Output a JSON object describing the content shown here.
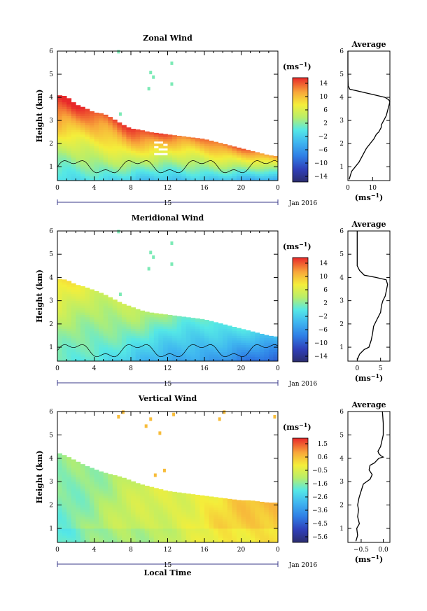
{
  "figure": {
    "xaxis_label": "Local Time",
    "date_label": "Jan 2016",
    "day_label": "15",
    "average_title": "Average"
  },
  "chart_data": [
    {
      "type": "heatmap",
      "title": "Zonal Wind",
      "ylabel": "Height (km)",
      "xticks": [
        "0",
        "4",
        "8",
        "12",
        "16",
        "20",
        "0"
      ],
      "yticks": [
        "1",
        "2",
        "3",
        "4",
        "5",
        "6"
      ],
      "xlim": [
        0,
        24
      ],
      "ylim": [
        0.4,
        6
      ],
      "colorbar": {
        "unit_label": "(ms",
        "unit_exp": "−1",
        "ticks": [
          "14",
          "10",
          "6",
          "2",
          "−2",
          "−6",
          "−10",
          "−14"
        ],
        "range": [
          -16,
          16
        ]
      },
      "top_profile": [
        [
          0,
          4.1
        ],
        [
          1,
          4.05
        ],
        [
          2,
          3.7
        ],
        [
          3,
          3.55
        ],
        [
          4,
          3.35
        ],
        [
          5,
          3.3
        ],
        [
          6,
          3.1
        ],
        [
          7,
          2.85
        ],
        [
          8,
          2.65
        ],
        [
          9,
          2.6
        ],
        [
          10,
          2.5
        ],
        [
          11,
          2.45
        ],
        [
          12,
          2.4
        ],
        [
          13,
          2.35
        ],
        [
          14,
          2.3
        ],
        [
          15,
          2.25
        ],
        [
          16,
          2.2
        ],
        [
          17,
          2.1
        ],
        [
          18,
          2.0
        ],
        [
          19,
          1.9
        ],
        [
          20,
          1.8
        ],
        [
          21,
          1.7
        ],
        [
          22,
          1.6
        ],
        [
          23,
          1.5
        ],
        [
          24,
          1.45
        ]
      ],
      "average": {
        "xticks": [
          "0",
          "10"
        ],
        "xlim": [
          0,
          17
        ],
        "height": [
          0.45,
          0.8,
          1.0,
          1.2,
          1.5,
          1.8,
          2.0,
          2.2,
          2.4,
          2.5,
          2.6,
          2.7,
          2.8,
          3.0,
          3.2,
          3.4,
          3.6,
          3.8,
          3.9,
          4.0,
          4.1,
          4.2,
          4.3,
          4.35,
          4.5,
          5.0,
          5.5,
          6.0
        ],
        "value": [
          0.5,
          1.5,
          3.0,
          4.5,
          6.0,
          7.5,
          9.0,
          10.5,
          11.5,
          12.5,
          13.0,
          13.5,
          13.5,
          14.5,
          15.5,
          16.0,
          16.5,
          17.0,
          16.5,
          15.0,
          11.0,
          7.0,
          3.0,
          0.8,
          0.1,
          0.0,
          0.0,
          0.0
        ]
      }
    },
    {
      "type": "heatmap",
      "title": "Meridional Wind",
      "ylabel": "Height (km)",
      "xticks": [
        "0",
        "4",
        "8",
        "12",
        "16",
        "20",
        "0"
      ],
      "yticks": [
        "1",
        "2",
        "3",
        "4",
        "5",
        "6"
      ],
      "xlim": [
        0,
        24
      ],
      "ylim": [
        0.4,
        6
      ],
      "colorbar": {
        "unit_label": "(ms",
        "unit_exp": "−1",
        "ticks": [
          "14",
          "10",
          "6",
          "2",
          "−2",
          "−6",
          "−10",
          "−14"
        ],
        "range": [
          -16,
          16
        ]
      },
      "top_profile": [
        [
          0,
          3.95
        ],
        [
          1,
          3.9
        ],
        [
          2,
          3.7
        ],
        [
          3,
          3.6
        ],
        [
          4,
          3.45
        ],
        [
          5,
          3.3
        ],
        [
          6,
          3.1
        ],
        [
          7,
          2.9
        ],
        [
          8,
          2.75
        ],
        [
          9,
          2.6
        ],
        [
          10,
          2.5
        ],
        [
          11,
          2.45
        ],
        [
          12,
          2.4
        ],
        [
          13,
          2.35
        ],
        [
          14,
          2.3
        ],
        [
          15,
          2.25
        ],
        [
          16,
          2.2
        ],
        [
          17,
          2.1
        ],
        [
          18,
          2.0
        ],
        [
          19,
          1.9
        ],
        [
          20,
          1.8
        ],
        [
          21,
          1.7
        ],
        [
          22,
          1.6
        ],
        [
          23,
          1.5
        ],
        [
          24,
          1.45
        ]
      ],
      "average": {
        "xticks": [
          "0",
          "5"
        ],
        "xlim": [
          -2,
          7
        ],
        "height": [
          0.45,
          0.7,
          0.9,
          1.0,
          1.3,
          1.6,
          1.9,
          2.1,
          2.3,
          2.5,
          2.8,
          3.0,
          3.2,
          3.4,
          3.7,
          3.9,
          4.0,
          4.1,
          4.3,
          4.5,
          5.0,
          5.5,
          6.0
        ],
        "value": [
          0.0,
          0.5,
          1.5,
          2.5,
          3.0,
          3.3,
          3.5,
          4.0,
          4.5,
          5.0,
          5.2,
          5.5,
          6.0,
          6.2,
          6.5,
          6.2,
          4.0,
          1.5,
          0.5,
          0.0,
          0.0,
          0.0,
          0.0
        ]
      }
    },
    {
      "type": "heatmap",
      "title": "Vertical Wind",
      "ylabel": "Height (km)",
      "xticks": [
        "0",
        "4",
        "8",
        "12",
        "16",
        "20",
        "0"
      ],
      "yticks": [
        "1",
        "2",
        "3",
        "4",
        "5",
        "6"
      ],
      "xlim": [
        0,
        24
      ],
      "ylim": [
        0.4,
        6
      ],
      "colorbar": {
        "unit_label": "(ms",
        "unit_exp": "−1",
        "ticks": [
          "1.5",
          "0.6",
          "−0.5",
          "−1.6",
          "−2.6",
          "−3.6",
          "−4.5",
          "−5.6"
        ],
        "range": [
          -6.0,
          2.0
        ]
      },
      "top_profile": [
        [
          0,
          4.25
        ],
        [
          1,
          4.1
        ],
        [
          2,
          3.9
        ],
        [
          3,
          3.7
        ],
        [
          4,
          3.55
        ],
        [
          5,
          3.4
        ],
        [
          6,
          3.3
        ],
        [
          7,
          3.2
        ],
        [
          8,
          3.05
        ],
        [
          9,
          2.9
        ],
        [
          10,
          2.8
        ],
        [
          11,
          2.7
        ],
        [
          12,
          2.6
        ],
        [
          13,
          2.55
        ],
        [
          14,
          2.5
        ],
        [
          15,
          2.45
        ],
        [
          16,
          2.4
        ],
        [
          17,
          2.35
        ],
        [
          18,
          2.3
        ],
        [
          19,
          2.25
        ],
        [
          20,
          2.2
        ],
        [
          21,
          2.2
        ],
        [
          22,
          2.15
        ],
        [
          23,
          2.1
        ],
        [
          24,
          2.1
        ]
      ],
      "average": {
        "xticks": [
          "−0.5",
          "0.0"
        ],
        "xlim": [
          -0.8,
          0.15
        ],
        "height": [
          0.45,
          0.7,
          1.0,
          1.2,
          1.5,
          1.8,
          2.0,
          2.3,
          2.6,
          2.9,
          3.1,
          3.3,
          3.5,
          3.7,
          3.8,
          3.9,
          4.0,
          4.05,
          4.1,
          4.2,
          4.3,
          4.5,
          5.0,
          5.5,
          6.0
        ],
        "value": [
          -0.62,
          -0.58,
          -0.6,
          -0.54,
          -0.58,
          -0.56,
          -0.58,
          -0.55,
          -0.5,
          -0.45,
          -0.3,
          -0.25,
          -0.32,
          -0.3,
          -0.2,
          -0.15,
          -0.1,
          0.0,
          -0.05,
          -0.1,
          -0.12,
          -0.06,
          0.0,
          0.0,
          -0.02
        ]
      }
    }
  ]
}
